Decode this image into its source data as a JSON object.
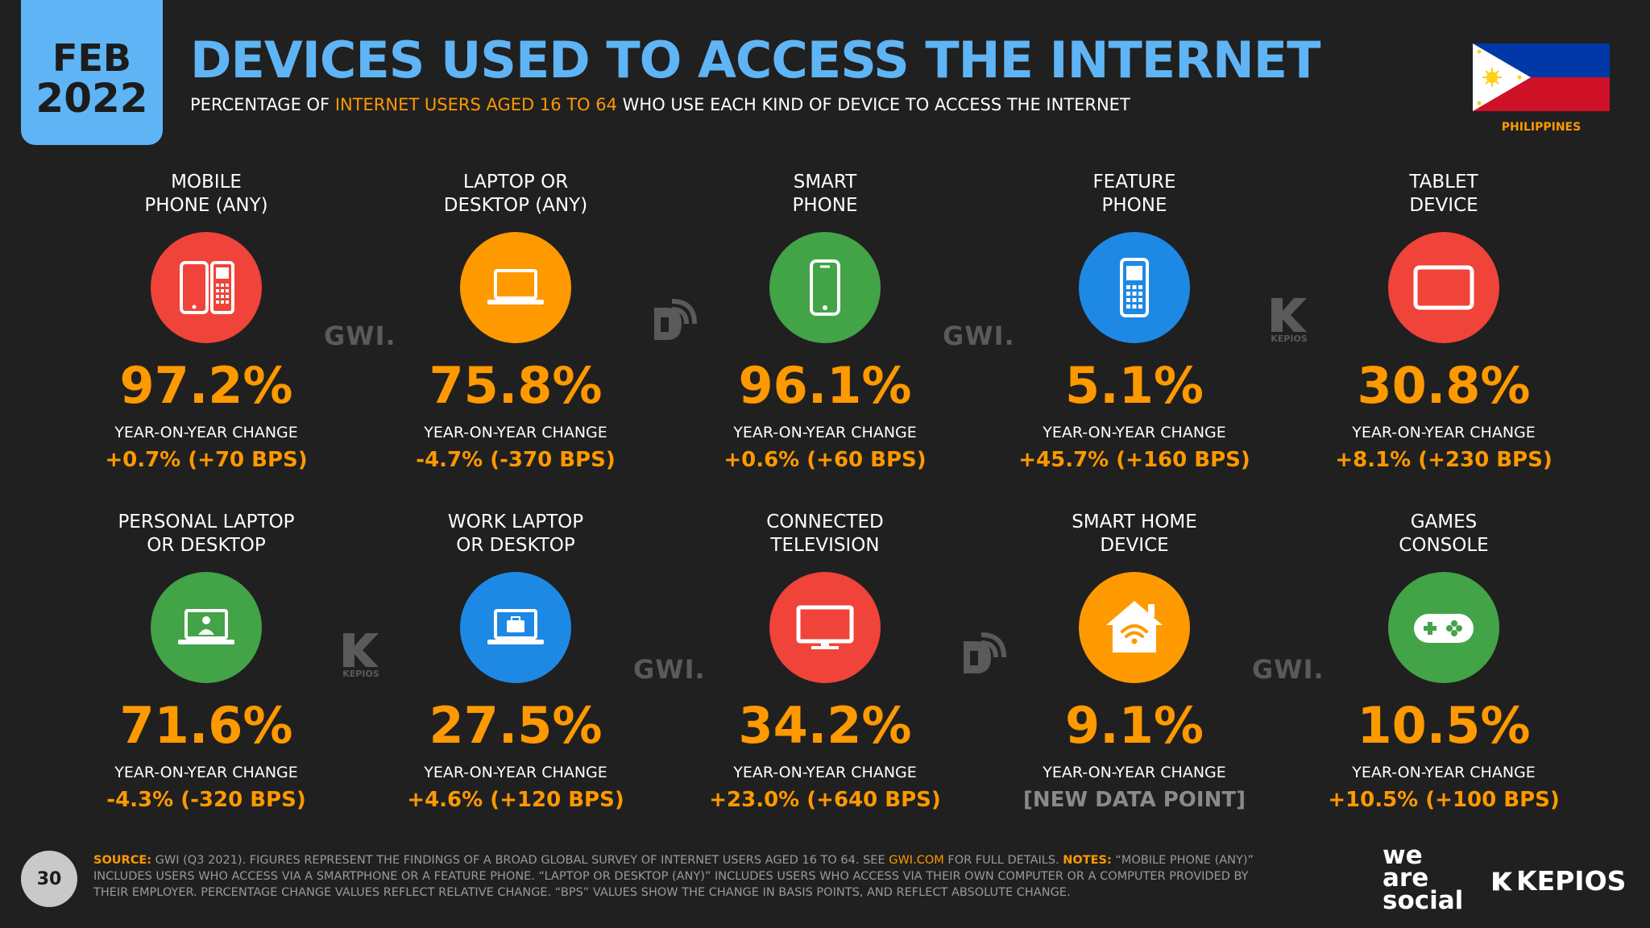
{
  "date": {
    "month": "FEB",
    "year": "2022"
  },
  "title": "DEVICES USED TO ACCESS THE INTERNET",
  "subtitle": {
    "pre": "PERCENTAGE OF ",
    "highlight": "INTERNET USERS AGED 16 TO 64",
    "post": " WHO USE EACH KIND OF DEVICE TO ACCESS THE INTERNET"
  },
  "country": "PHILIPPINES",
  "colors": {
    "accent": "#ff9900",
    "title": "#5fb4f5",
    "red": "#f0433a",
    "orange": "#ff9900",
    "green": "#43a347",
    "blue": "#1e88e5"
  },
  "chart_data": {
    "type": "table",
    "title": "DEVICES USED TO ACCESS THE INTERNET",
    "yoy_label": "YEAR-ON-YEAR CHANGE",
    "items": [
      {
        "label_line1": "MOBILE",
        "label_line2": "PHONE (ANY)",
        "value": 97.2,
        "value_text": "97.2%",
        "yoy_text": "+0.7% (+70 BPS)",
        "icon": "mobile-and-feature-phone-icon",
        "color": "#f0433a"
      },
      {
        "label_line1": "LAPTOP OR",
        "label_line2": "DESKTOP (ANY)",
        "value": 75.8,
        "value_text": "75.8%",
        "yoy_text": "-4.7% (-370 BPS)",
        "icon": "laptop-icon",
        "color": "#ff9900"
      },
      {
        "label_line1": "SMART",
        "label_line2": "PHONE",
        "value": 96.1,
        "value_text": "96.1%",
        "yoy_text": "+0.6% (+60 BPS)",
        "icon": "smartphone-icon",
        "color": "#43a347"
      },
      {
        "label_line1": "FEATURE",
        "label_line2": "PHONE",
        "value": 5.1,
        "value_text": "5.1%",
        "yoy_text": "+45.7% (+160 BPS)",
        "icon": "feature-phone-icon",
        "color": "#1e88e5"
      },
      {
        "label_line1": "TABLET",
        "label_line2": "DEVICE",
        "value": 30.8,
        "value_text": "30.8%",
        "yoy_text": "+8.1% (+230 BPS)",
        "icon": "tablet-icon",
        "color": "#f0433a"
      },
      {
        "label_line1": "PERSONAL LAPTOP",
        "label_line2": "OR DESKTOP",
        "value": 71.6,
        "value_text": "71.6%",
        "yoy_text": "-4.3% (-320 BPS)",
        "icon": "personal-laptop-icon",
        "color": "#43a347"
      },
      {
        "label_line1": "WORK LAPTOP",
        "label_line2": "OR DESKTOP",
        "value": 27.5,
        "value_text": "27.5%",
        "yoy_text": "+4.6% (+120 BPS)",
        "icon": "work-laptop-icon",
        "color": "#1e88e5"
      },
      {
        "label_line1": "CONNECTED",
        "label_line2": "TELEVISION",
        "value": 34.2,
        "value_text": "34.2%",
        "yoy_text": "+23.0% (+640 BPS)",
        "icon": "television-icon",
        "color": "#f0433a"
      },
      {
        "label_line1": "SMART HOME",
        "label_line2": "DEVICE",
        "value": 9.1,
        "value_text": "9.1%",
        "yoy_text": "[NEW DATA POINT]",
        "icon": "smart-home-icon",
        "color": "#ff9900"
      },
      {
        "label_line1": "GAMES",
        "label_line2": "CONSOLE",
        "value": 10.5,
        "value_text": "10.5%",
        "yoy_text": "+10.5% (+100 BPS)",
        "icon": "game-controller-icon",
        "color": "#43a347"
      }
    ]
  },
  "watermarks": {
    "gwi": "GWI.",
    "kepios": "KEPIOS"
  },
  "footer": {
    "page": "30",
    "source_label": "SOURCE:",
    "source_text": " GWI (Q3 2021). FIGURES REPRESENT THE FINDINGS OF A BROAD GLOBAL SURVEY OF INTERNET USERS AGED 16 TO 64. SEE ",
    "link": "GWI.COM",
    "after_link": " FOR FULL DETAILS. ",
    "notes_label": "NOTES:",
    "notes_text": " “MOBILE PHONE (ANY)” INCLUDES USERS WHO ACCESS VIA A SMARTPHONE OR A FEATURE PHONE. “LAPTOP OR DESKTOP (ANY)” INCLUDES USERS WHO ACCESS VIA THEIR OWN COMPUTER OR A COMPUTER PROVIDED BY THEIR EMPLOYER. PERCENTAGE CHANGE VALUES REFLECT RELATIVE CHANGE. “BPS” VALUES SHOW THE CHANGE IN BASIS POINTS, AND REFLECT ABSOLUTE CHANGE."
  },
  "brands": {
    "ws_line1": "we",
    "ws_line2": "are",
    "ws_line3": "social",
    "kepios": "KEPIOS"
  }
}
